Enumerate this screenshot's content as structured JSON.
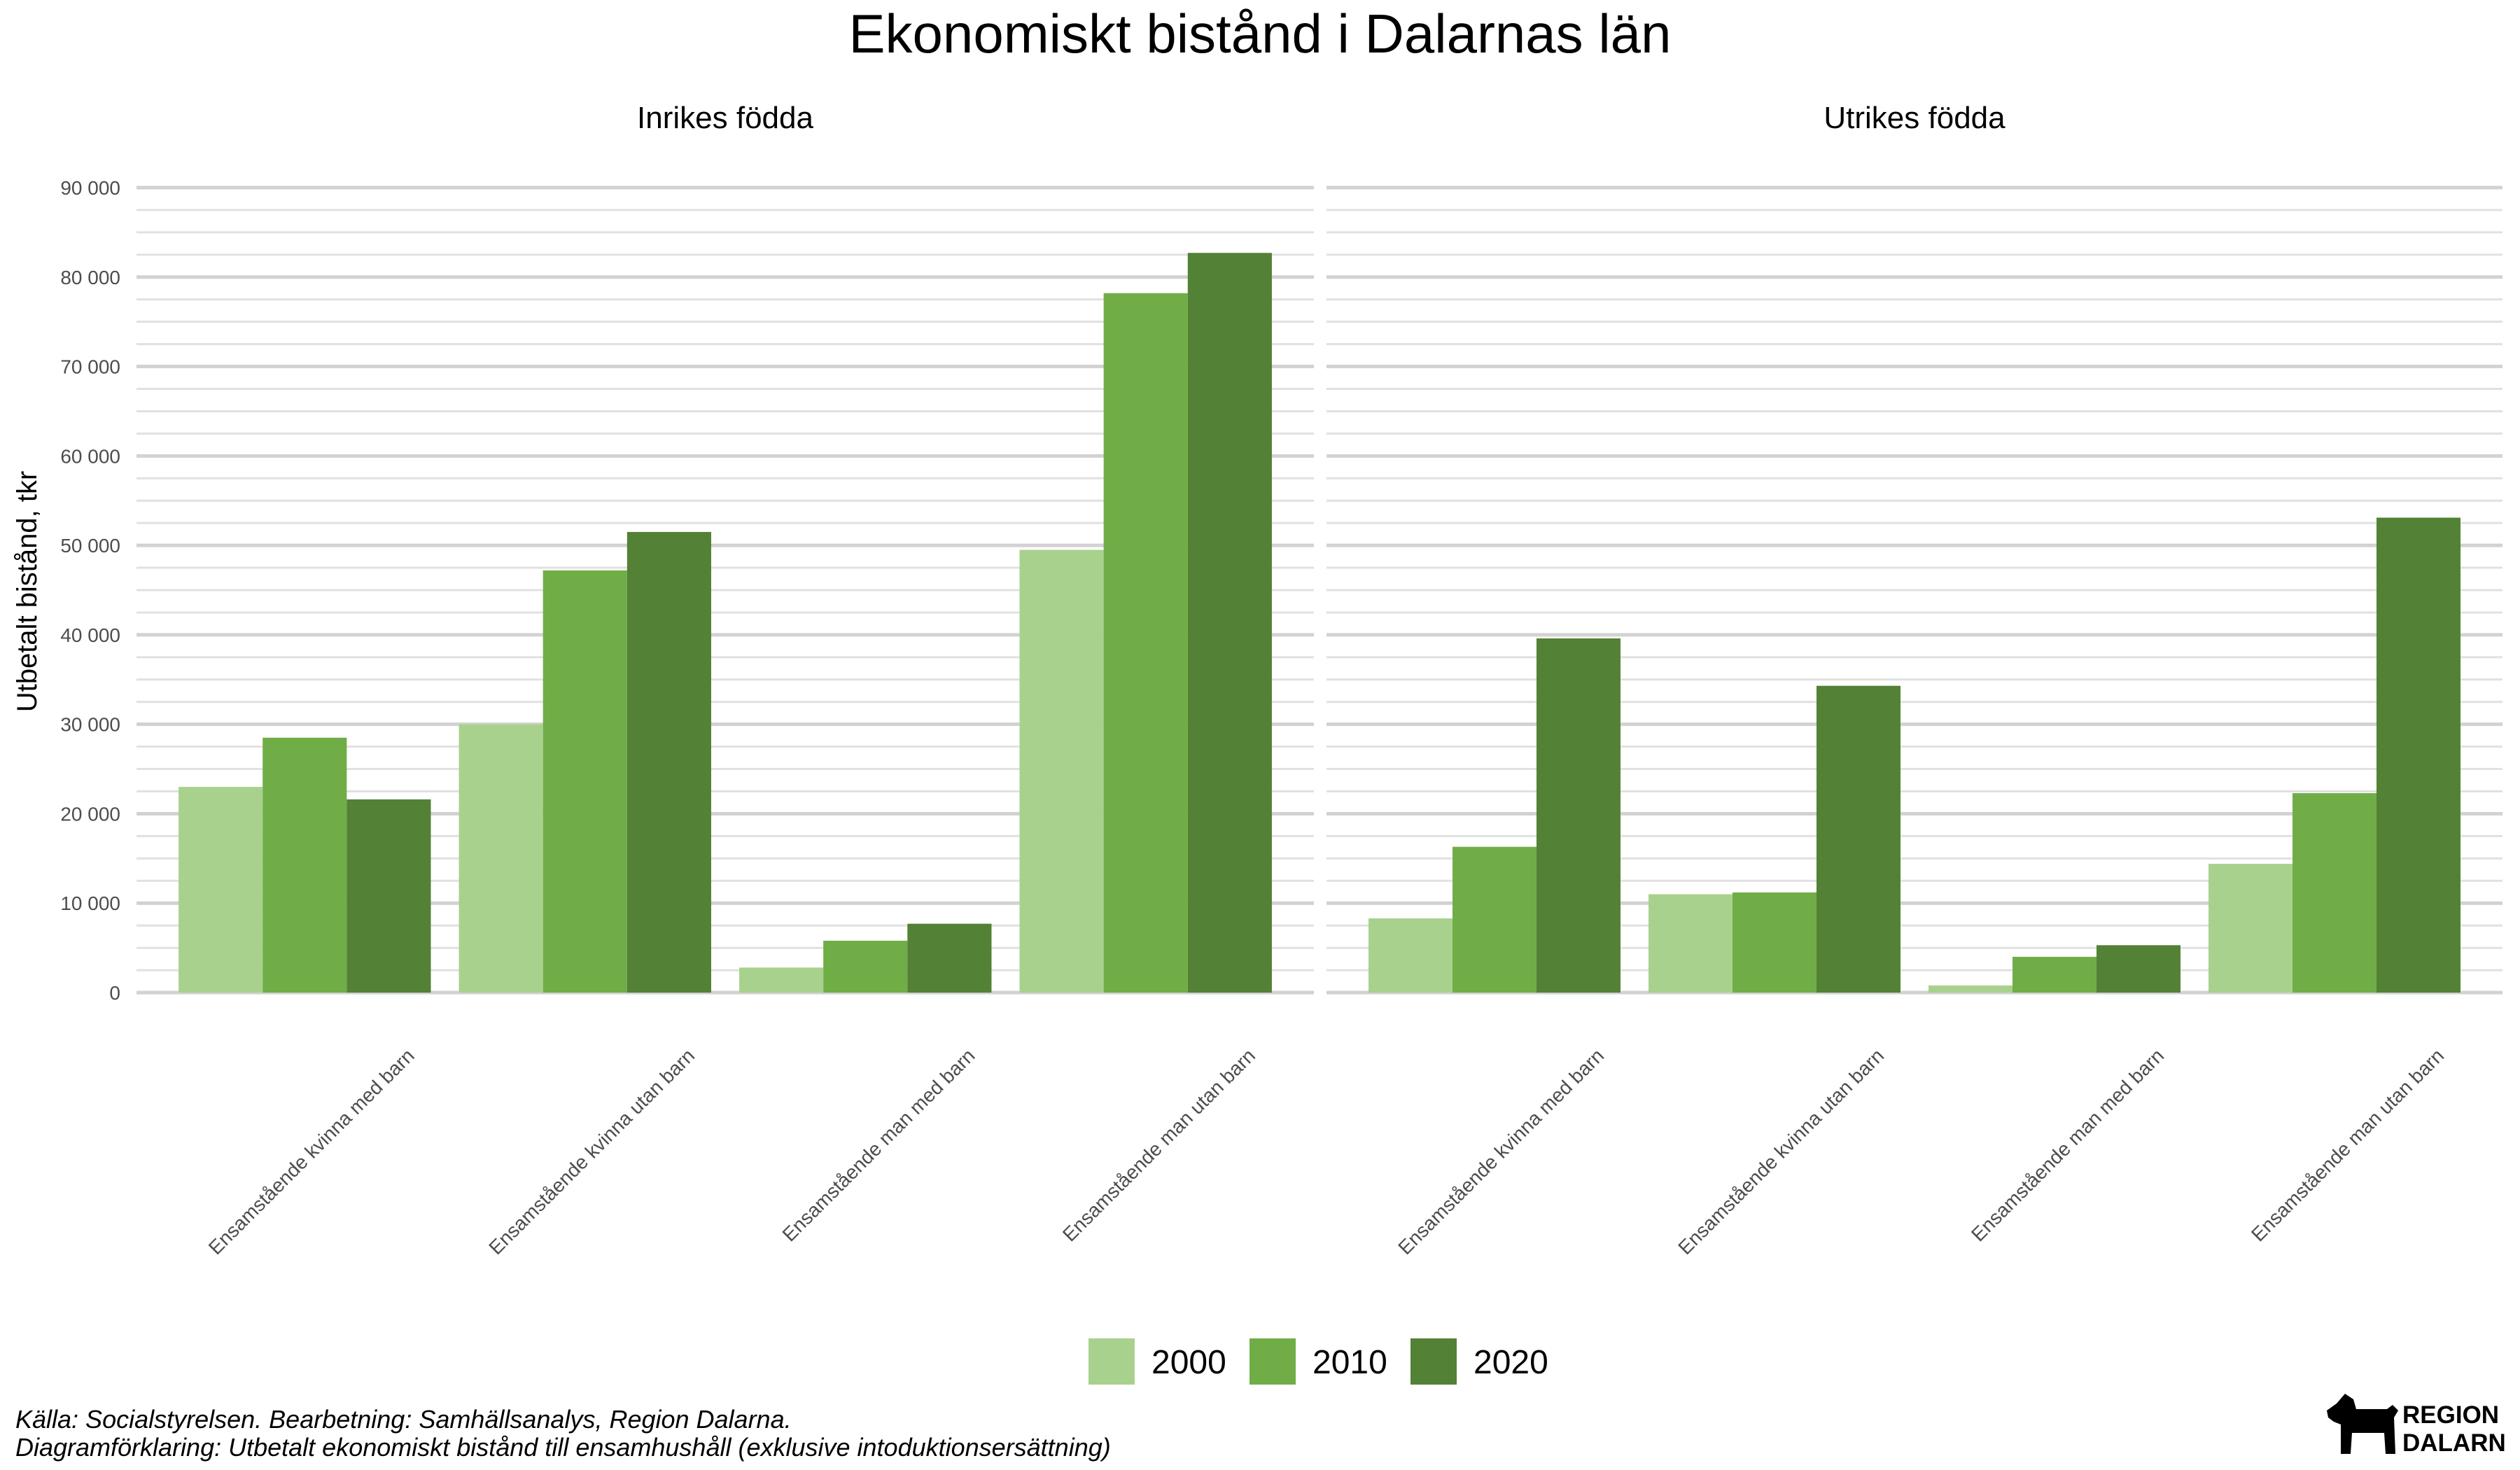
{
  "chart_data": {
    "type": "bar",
    "title": "Ekonomiskt bistånd i Dalarnas län",
    "ylabel": "Utbetalt bistånd, tkr",
    "xlabel": "",
    "ylim": [
      0,
      90000
    ],
    "yticks": [
      0,
      10000,
      20000,
      30000,
      40000,
      50000,
      60000,
      70000,
      80000,
      90000
    ],
    "ytick_labels": [
      "0",
      "10 000",
      "20 000",
      "30 000",
      "40 000",
      "50 000",
      "60 000",
      "70 000",
      "80 000",
      "90 000"
    ],
    "grid": true,
    "legend_position": "bottom",
    "categories": [
      "Ensamstående kvinna med barn",
      "Ensamstående kvinna utan barn",
      "Ensamstående man med barn",
      "Ensamstående man utan barn"
    ],
    "series_names": [
      "2000",
      "2010",
      "2020"
    ],
    "colors": {
      "2000": "#a9d18e",
      "2010": "#70ad47",
      "2020": "#538135"
    },
    "panels": [
      {
        "title": "Inrikes födda",
        "series": [
          {
            "name": "2000",
            "values": [
              23000,
              30000,
              2800,
              49500
            ]
          },
          {
            "name": "2010",
            "values": [
              28500,
              47200,
              5800,
              78200
            ]
          },
          {
            "name": "2020",
            "values": [
              21600,
              51500,
              7700,
              82700
            ]
          }
        ]
      },
      {
        "title": "Utrikes födda",
        "series": [
          {
            "name": "2000",
            "values": [
              8300,
              11000,
              800,
              14400
            ]
          },
          {
            "name": "2010",
            "values": [
              16300,
              11200,
              4000,
              22300
            ]
          },
          {
            "name": "2020",
            "values": [
              39600,
              34300,
              5300,
              53100
            ]
          }
        ]
      }
    ]
  },
  "captions": {
    "source": "Källa: Socialstyrelsen. Bearbetning: Samhällsanalys, Region Dalarna.",
    "explanation": "Diagramförklaring: Utbetalt ekonomiskt bistånd till ensamhushåll (exklusive intoduktionsersättning)"
  },
  "logo": {
    "line1": "REGION",
    "line2": "DALARNA",
    "icon": "dala-horse-icon"
  }
}
